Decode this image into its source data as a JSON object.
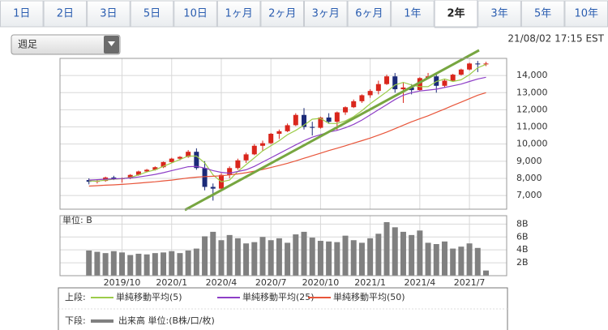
{
  "tabs": [
    "1日",
    "2日",
    "3日",
    "5日",
    "10日",
    "1ヶ月",
    "2ヶ月",
    "3ヶ月",
    "6ヶ月",
    "1年",
    "2年",
    "3年",
    "5年",
    "10年"
  ],
  "active_tab": 10,
  "period_select": "週足",
  "timestamp": "21/08/02 17:15 EST",
  "legend": {
    "upper": "上段:",
    "lower": "下段:"
  },
  "chart_data": [
    {
      "type": "candlestick",
      "up_color": "#d9261c",
      "down_color": "#1b2a78",
      "ylim": [
        6200,
        15000
      ],
      "yticks": [
        {
          "value": 7000,
          "label": "7,000"
        },
        {
          "value": 8000,
          "label": "8,000"
        },
        {
          "value": 9000,
          "label": "9,000"
        },
        {
          "value": 10000,
          "label": "10,000"
        },
        {
          "value": 11000,
          "label": "11,000"
        },
        {
          "value": 12000,
          "label": "12,000"
        },
        {
          "value": 13000,
          "label": "13,000"
        },
        {
          "value": 14000,
          "label": "14,000"
        }
      ],
      "grid": true,
      "open": [
        null,
        null,
        null,
        7900,
        7800,
        7850,
        8050,
        7950,
        8000,
        8200,
        8400,
        8500,
        8650,
        8950,
        9150,
        9250,
        9550,
        8600,
        7500,
        7400,
        8200,
        8600,
        9050,
        9400,
        9900,
        10050,
        10600,
        10750,
        11100,
        11700,
        11000,
        10950,
        11550,
        11300,
        11850,
        12150,
        12500,
        12850,
        13100,
        13500,
        13950,
        13200,
        13300,
        13150,
        13850,
        13950,
        13400,
        13700,
        14050,
        14350,
        14700,
        14650,
        null,
        null
      ],
      "high": [
        null,
        null,
        null,
        8000,
        7950,
        8100,
        8150,
        8050,
        8250,
        8450,
        8550,
        8700,
        8980,
        9200,
        9300,
        9650,
        9750,
        9000,
        7700,
        8300,
        8700,
        9150,
        9500,
        10000,
        10200,
        10650,
        10850,
        11200,
        11800,
        12100,
        11300,
        11600,
        11800,
        11900,
        12200,
        12600,
        12900,
        13200,
        13700,
        14050,
        14150,
        13600,
        13500,
        13900,
        14150,
        14050,
        13800,
        14100,
        14400,
        14750,
        14850,
        14800,
        null,
        null
      ],
      "low": [
        null,
        null,
        null,
        7650,
        7700,
        7800,
        7900,
        7750,
        7950,
        8150,
        8350,
        8450,
        8600,
        8900,
        9050,
        9200,
        8500,
        7300,
        6700,
        7300,
        8000,
        8500,
        8900,
        9350,
        9600,
        10000,
        10300,
        10700,
        11050,
        10850,
        10500,
        10900,
        11200,
        10800,
        11700,
        12100,
        12400,
        12700,
        12900,
        13450,
        13000,
        12400,
        12900,
        13100,
        13800,
        13000,
        13300,
        13650,
        14000,
        14300,
        14200,
        14550,
        null,
        null
      ],
      "close": [
        null,
        null,
        null,
        7800,
        7850,
        8050,
        7950,
        8000,
        8200,
        8400,
        8500,
        8650,
        8950,
        9150,
        9250,
        9550,
        8600,
        7500,
        7400,
        8200,
        8600,
        9050,
        9400,
        9900,
        10050,
        10600,
        10750,
        11100,
        11700,
        11000,
        10950,
        11550,
        11300,
        11850,
        12150,
        12500,
        12850,
        13100,
        13500,
        13950,
        13200,
        13300,
        13150,
        13850,
        13950,
        13400,
        13700,
        14050,
        14350,
        14700,
        14650,
        14700,
        null,
        null
      ],
      "series": [
        {
          "name": "単純移動平均(5)",
          "color": "#9ccc4a",
          "values": [
            null,
            null,
            null,
            7850,
            7830,
            7900,
            7950,
            7980,
            8050,
            8200,
            8370,
            8500,
            8700,
            8900,
            9100,
            9300,
            9300,
            8900,
            8200,
            7800,
            7900,
            8400,
            8800,
            9200,
            9600,
            9900,
            10200,
            10550,
            10800,
            11100,
            11450,
            11500,
            11200,
            11200,
            11350,
            11600,
            11950,
            12350,
            12700,
            13050,
            13450,
            13600,
            13450,
            13350,
            13350,
            13650,
            13800,
            13650,
            13750,
            14050,
            14450,
            14650,
            null,
            null
          ]
        },
        {
          "name": "単純移動平均(25)",
          "color": "#8e3fc7",
          "values": [
            null,
            null,
            null,
            7900,
            7920,
            7950,
            7970,
            7990,
            8020,
            8080,
            8150,
            8230,
            8330,
            8450,
            8560,
            8680,
            8700,
            8600,
            8450,
            8350,
            8300,
            8400,
            8500,
            8700,
            8950,
            9200,
            9450,
            9700,
            9950,
            10200,
            10400,
            10550,
            10700,
            10800,
            10950,
            11150,
            11400,
            11700,
            12000,
            12300,
            12600,
            12850,
            13000,
            13100,
            13150,
            13200,
            13300,
            13400,
            13500,
            13650,
            13800,
            13900,
            null,
            null
          ]
        },
        {
          "name": "単純移動平均(50)",
          "color": "#e8553a",
          "values": [
            null,
            null,
            null,
            7550,
            7570,
            7600,
            7620,
            7650,
            7680,
            7720,
            7760,
            7800,
            7850,
            7900,
            7960,
            8020,
            8070,
            8100,
            8120,
            8150,
            8200,
            8260,
            8330,
            8420,
            8520,
            8630,
            8750,
            8880,
            9020,
            9170,
            9320,
            9470,
            9620,
            9760,
            9900,
            10050,
            10200,
            10350,
            10520,
            10700,
            10900,
            11100,
            11300,
            11480,
            11650,
            11850,
            12050,
            12250,
            12450,
            12650,
            12850,
            13000,
            null,
            null
          ]
        }
      ]
    },
    {
      "type": "bar",
      "unit_label": "単位: B",
      "categories": [
        null,
        null,
        null,
        null,
        null,
        null,
        null,
        "2019/10",
        null,
        null,
        null,
        null,
        null,
        "2020/1",
        null,
        null,
        null,
        null,
        null,
        "2020/4",
        null,
        null,
        null,
        null,
        null,
        "2020/7",
        null,
        null,
        null,
        null,
        null,
        "2020/10",
        null,
        null,
        null,
        null,
        null,
        "2021/1",
        null,
        null,
        null,
        null,
        null,
        "2021/4",
        null,
        null,
        null,
        null,
        null,
        "2021/7",
        null,
        null,
        null,
        null
      ],
      "ylim": [
        0,
        9.3
      ],
      "yticks": [
        {
          "value": 2,
          "label": "2B"
        },
        {
          "value": 4,
          "label": "4B"
        },
        {
          "value": 6,
          "label": "6B"
        },
        {
          "value": 8,
          "label": "8B"
        }
      ],
      "grid": true,
      "series": [
        {
          "name": "出来高 単位:(B株/口/枚)",
          "color": "#808080",
          "values": [
            null,
            null,
            null,
            3.9,
            3.7,
            3.5,
            3.8,
            3.6,
            3.2,
            3.4,
            3.3,
            3.5,
            3.6,
            3.8,
            3.5,
            3.9,
            4.2,
            6.1,
            6.8,
            5.5,
            6.3,
            5.8,
            5.0,
            5.2,
            6.0,
            5.5,
            5.8,
            5.1,
            6.4,
            6.8,
            5.9,
            5.4,
            5.3,
            5.2,
            6.2,
            5.5,
            5.1,
            5.8,
            6.5,
            8.3,
            7.5,
            6.8,
            6.3,
            7.0,
            5.1,
            4.9,
            5.3,
            4.2,
            4.5,
            5.0,
            4.3,
            0.8,
            null,
            null
          ]
        }
      ]
    }
  ]
}
